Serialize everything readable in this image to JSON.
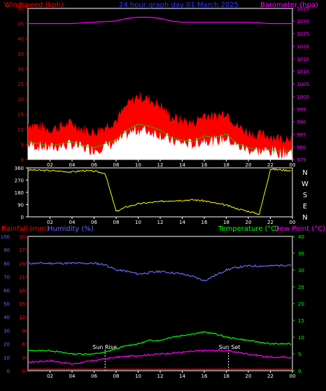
{
  "top_panel": {
    "title": "24 hour graph day  01 March 2025",
    "left_label": "Windspeed (kph)",
    "right_label": "Barometer (hpa)",
    "left_ticks": [
      "0",
      "5",
      "10",
      "15",
      "20",
      "25",
      "30",
      "35",
      "40",
      "45",
      "50"
    ],
    "right_ticks": [
      "975",
      "980",
      "985",
      "990",
      "995",
      "1000",
      "1005",
      "1010",
      "1015",
      "1020",
      "1025",
      "1030",
      "1035"
    ],
    "x_ticks": [
      "02",
      "04",
      "06",
      "08",
      "10",
      "12",
      "14",
      "16",
      "18",
      "20",
      "22",
      "00"
    ]
  },
  "mid_panel": {
    "left_ticks": [
      "0",
      "90",
      "180",
      "270",
      "360"
    ],
    "compass": [
      "N",
      "W",
      "S",
      "E",
      "N"
    ],
    "x_ticks": [
      "02",
      "04",
      "06",
      "08",
      "10",
      "12",
      "14",
      "16",
      "18",
      "20",
      "22",
      "00"
    ]
  },
  "bottom_panel": {
    "rain_label": "Rainfall (mm)",
    "humidity_label": "Humidity (%)",
    "temp_label": "Temperature (°C)",
    "dew_label": "Dew Point (°C)",
    "humidity_ticks": [
      "0",
      "10",
      "20",
      "30",
      "40",
      "50",
      "60",
      "70",
      "80",
      "90",
      "100"
    ],
    "rain_ticks": [
      "0",
      "3",
      "6",
      "9",
      "12",
      "15",
      "18",
      "21",
      "24",
      "27",
      "30"
    ],
    "temp_ticks": [
      "0",
      "5",
      "10",
      "15",
      "20",
      "25",
      "30",
      "35",
      "40"
    ],
    "sunrise_label": "Sun Rise",
    "sunset_label": "Sun Set",
    "x_ticks": [
      "02",
      "04",
      "06",
      "08",
      "10",
      "12",
      "14",
      "16",
      "18",
      "20",
      "22",
      "00"
    ]
  },
  "colors": {
    "wind_gust": "#ff0000",
    "wind_avg": "#ffffff",
    "wind_avg_line": "#00cc00",
    "barometer": "#ff00ff",
    "direction": "#ffff00",
    "humidity": "#6666ff",
    "temperature": "#00ff00",
    "dew_point": "#ff00ff",
    "rain": "#ff0000"
  },
  "chart_data": [
    {
      "type": "area",
      "x_unit": "hour",
      "x_range": [
        0,
        24
      ],
      "left_axis_range": [
        0,
        50
      ],
      "right_axis_range": [
        975,
        1035
      ],
      "series": [
        {
          "name": "Windspeed (kph)",
          "x": [
            0,
            1,
            2,
            3,
            4,
            5,
            6,
            7,
            8,
            9,
            10,
            11,
            12,
            13,
            14,
            15,
            16,
            17,
            18,
            19,
            20,
            21,
            22,
            23,
            24
          ],
          "y": [
            9,
            8,
            7,
            8,
            9,
            7,
            6,
            8,
            10,
            15,
            18,
            17,
            15,
            11,
            10,
            9,
            12,
            11,
            13,
            8,
            6,
            5,
            5,
            4,
            5
          ]
        },
        {
          "name": "Barometer (hpa)",
          "x": [
            0,
            2,
            4,
            6,
            8,
            9,
            10,
            11,
            12,
            13,
            14,
            16,
            18,
            20,
            22,
            24
          ],
          "y": [
            1029,
            1029,
            1029,
            1029.5,
            1030,
            1031,
            1031.5,
            1031.5,
            1031,
            1030,
            1029.5,
            1029.5,
            1029.5,
            1029.5,
            1029,
            1029
          ]
        }
      ]
    },
    {
      "type": "line",
      "x_unit": "hour",
      "x_range": [
        0,
        24
      ],
      "y_range": [
        0,
        360
      ],
      "series": [
        {
          "name": "Wind direction",
          "x": [
            0,
            2,
            4,
            5,
            6,
            7,
            8,
            9,
            10,
            11,
            12,
            13,
            14,
            15,
            16,
            17,
            18,
            19,
            20,
            21,
            22,
            23,
            24
          ],
          "y": [
            345,
            340,
            330,
            340,
            335,
            320,
            40,
            75,
            95,
            105,
            112,
            120,
            122,
            125,
            118,
            100,
            85,
            60,
            40,
            20,
            350,
            345,
            340
          ]
        }
      ]
    },
    {
      "type": "line",
      "x_unit": "hour",
      "x_range": [
        0,
        24
      ],
      "series": [
        {
          "name": "Humidity (%)",
          "axis_range": [
            0,
            100
          ],
          "x": [
            0,
            2,
            4,
            6,
            7,
            8,
            9,
            10,
            11,
            12,
            13,
            14,
            15,
            16,
            17,
            18,
            19,
            20,
            22,
            24
          ],
          "y": [
            80,
            80,
            80,
            80,
            79,
            75,
            74,
            72,
            73,
            74,
            73,
            72,
            70,
            67,
            71,
            75,
            77,
            78,
            78,
            79
          ]
        },
        {
          "name": "Temperature (°C)",
          "axis_range": [
            0,
            40
          ],
          "x": [
            0,
            2,
            4,
            6,
            7,
            8,
            9,
            10,
            11,
            12,
            13,
            14,
            15,
            16,
            17,
            18,
            19,
            20,
            22,
            24
          ],
          "y": [
            6,
            6,
            5,
            5,
            5.5,
            6.5,
            7.5,
            8,
            9,
            9,
            10,
            10.5,
            11,
            11.5,
            11,
            10,
            9.5,
            9,
            8,
            8
          ]
        },
        {
          "name": "Dew Point (°C)",
          "axis_range": [
            0,
            40
          ],
          "x": [
            0,
            2,
            4,
            6,
            8,
            10,
            12,
            14,
            16,
            18,
            20,
            22,
            24
          ],
          "y": [
            2.5,
            3,
            2,
            3,
            4,
            4.5,
            5,
            5.5,
            6,
            6,
            5,
            4,
            4
          ]
        },
        {
          "name": "Rainfall (mm)",
          "axis_range": [
            0,
            30
          ],
          "x": [
            0,
            24
          ],
          "y": [
            0,
            0
          ]
        }
      ],
      "annotations": [
        {
          "text": "Sun Rise",
          "x": 7
        },
        {
          "text": "Sun Set",
          "x": 18.2
        }
      ]
    }
  ]
}
